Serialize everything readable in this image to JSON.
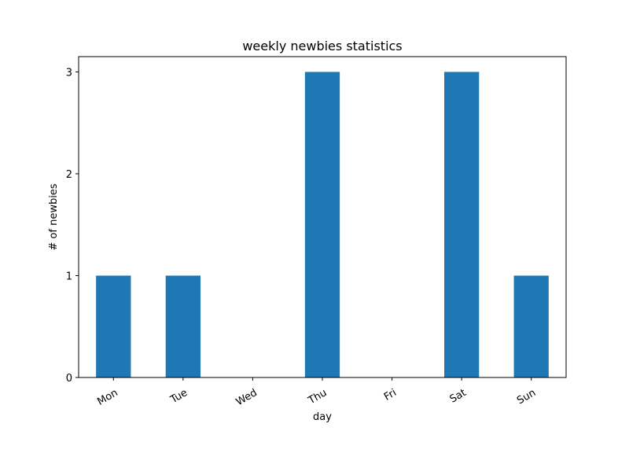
{
  "chart_data": {
    "type": "bar",
    "title": "weekly newbies statistics",
    "xlabel": "day",
    "ylabel": "# of newbies",
    "categories": [
      "Mon",
      "Tue",
      "Wed",
      "Thu",
      "Fri",
      "Sat",
      "Sun"
    ],
    "values": [
      1,
      1,
      0,
      3,
      0,
      3,
      1
    ],
    "ylim": [
      0,
      3.15
    ],
    "yticks": [
      0,
      1,
      2,
      3
    ],
    "grid": false,
    "legend": "none",
    "bar_color": "#1f77b4"
  }
}
